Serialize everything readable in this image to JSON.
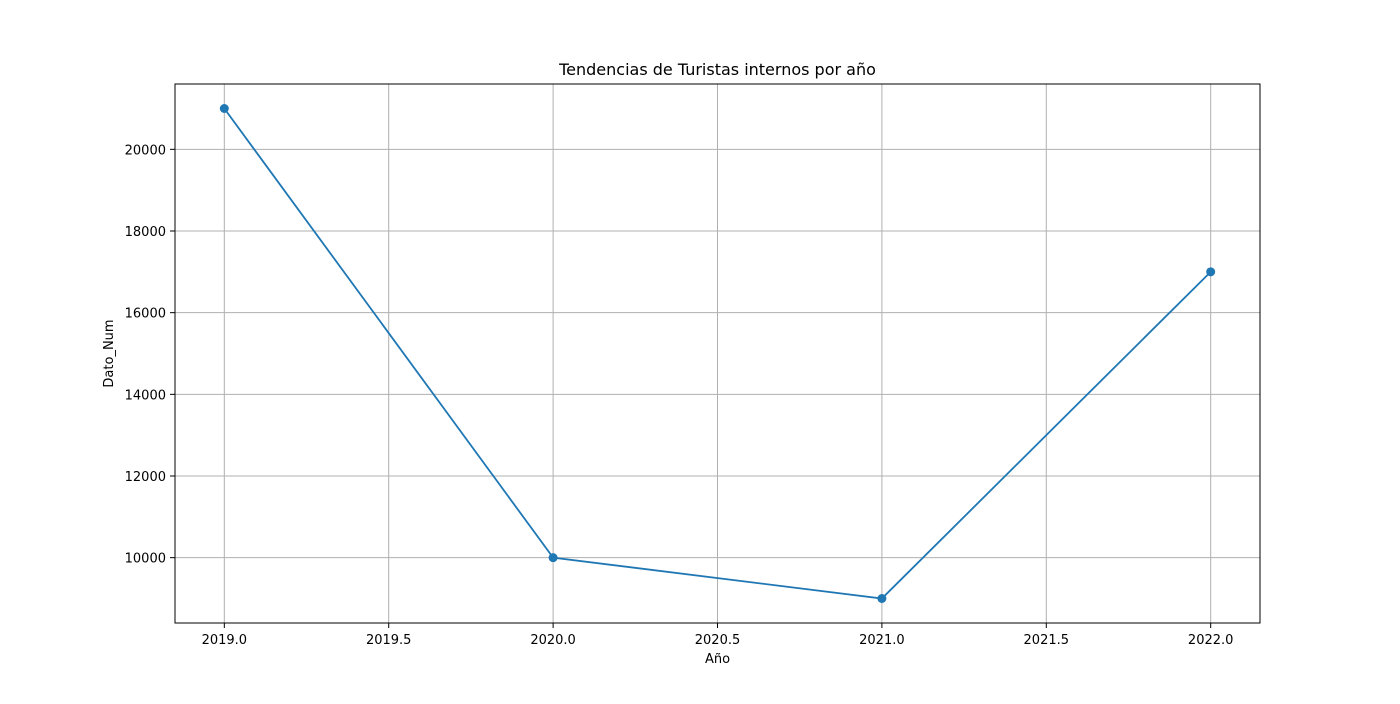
{
  "chart_data": {
    "type": "line",
    "title": "Tendencias de Turistas internos por año",
    "xlabel": "Año",
    "ylabel": "Dato_Num",
    "x": [
      2019,
      2020,
      2021,
      2022
    ],
    "series": [
      {
        "values": [
          21000,
          10000,
          9000,
          17000
        ]
      }
    ],
    "xlim": [
      2018.85,
      2022.15
    ],
    "ylim": [
      8400,
      21600
    ],
    "xticks": [
      2019.0,
      2019.5,
      2020.0,
      2020.5,
      2021.0,
      2021.5,
      2022.0
    ],
    "xtick_labels": [
      "2019.0",
      "2019.5",
      "2020.0",
      "2020.5",
      "2021.0",
      "2021.5",
      "2022.0"
    ],
    "yticks": [
      10000,
      12000,
      14000,
      16000,
      18000,
      20000
    ],
    "ytick_labels": [
      "10000",
      "12000",
      "14000",
      "16000",
      "18000",
      "20000"
    ],
    "grid": true,
    "marker": "circle",
    "colors": {
      "line": "#1f77b4",
      "grid": "#b0b0b0",
      "axes": "#000000"
    }
  }
}
